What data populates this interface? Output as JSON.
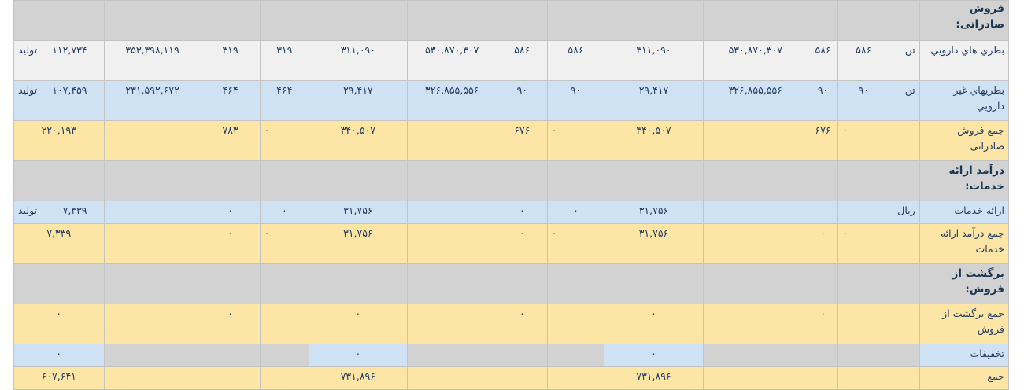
{
  "sections": {
    "export_sales": {
      "header": "فروش صادراتی:",
      "rows": [
        {
          "name": "بطري هاي دارويي",
          "unit": "تن",
          "c1": "۵۸۶",
          "c2": "۵۸۶",
          "c3": "۵۳۰,۸۷۰,۳۰۷",
          "c4": "۳۱۱,۰۹۰",
          "c5": "۵۸۶",
          "c6": "۵۸۶",
          "c7": "۵۳۰,۸۷۰,۳۰۷",
          "c8": "۳۱۱,۰۹۰",
          "c9": "۳۱۹",
          "c10": "۳۱۹",
          "c11": "۳۵۳,۳۹۸,۱۱۹",
          "c12": "۱۱۲,۷۳۴",
          "type": "تولید"
        },
        {
          "name": "بطريهاي غير دارويي",
          "unit": "تن",
          "c1": "۹۰",
          "c2": "۹۰",
          "c3": "۳۲۶,۸۵۵,۵۵۶",
          "c4": "۲۹,۴۱۷",
          "c5": "۹۰",
          "c6": "۹۰",
          "c7": "۳۲۶,۸۵۵,۵۵۶",
          "c8": "۲۹,۴۱۷",
          "c9": "۴۶۴",
          "c10": "۴۶۴",
          "c11": "۲۳۱,۵۹۲,۶۷۲",
          "c12": "۱۰۷,۴۵۹",
          "type": "تولید"
        }
      ],
      "total": {
        "name": "جمع فروش صادراتی",
        "c2": "۰",
        "c1": "۶۷۶",
        "c4": "۳۴۰,۵۰۷",
        "c5": "۰",
        "c6": "۶۷۶",
        "c8": "۳۴۰,۵۰۷",
        "c9": "۰",
        "c10": "۷۸۳",
        "c12": "۲۲۰,۱۹۳"
      }
    },
    "services": {
      "header": "درآمد ارائه خدمات:",
      "rows": [
        {
          "name": "ارائه خدمات",
          "unit": "ريال",
          "c4": "۳۱,۷۵۶",
          "c5": "۰",
          "c6": "۰",
          "c8": "۳۱,۷۵۶",
          "c9": "۰",
          "c10": "۰",
          "c12": "۷,۳۳۹",
          "type": "تولید"
        }
      ],
      "total": {
        "name": "جمع درآمد ارائه خدمات",
        "c2": "۰",
        "c1": "۰",
        "c4": "۳۱,۷۵۶",
        "c5": "۰",
        "c6": "۰",
        "c8": "۳۱,۷۵۶",
        "c9": "۰",
        "c10": "۰",
        "c12": "۷,۳۳۹"
      }
    },
    "returns": {
      "header": "برگشت از فروش:",
      "total": {
        "name": "جمع برگشت از فروش",
        "c1": "۰",
        "c4": "۰",
        "c6": "۰",
        "c8": "۰",
        "c10": "۰",
        "c12": "۰"
      }
    },
    "discounts": {
      "name": "تخفیفات",
      "c4": "۰",
      "c8": "۰",
      "c12": "۰"
    },
    "grand_total": {
      "name": "جمع",
      "c4": "۷۳۱,۸۹۶",
      "c8": "۷۳۱,۸۹۶",
      "c12": "۶۰۷,۶۴۱"
    }
  }
}
